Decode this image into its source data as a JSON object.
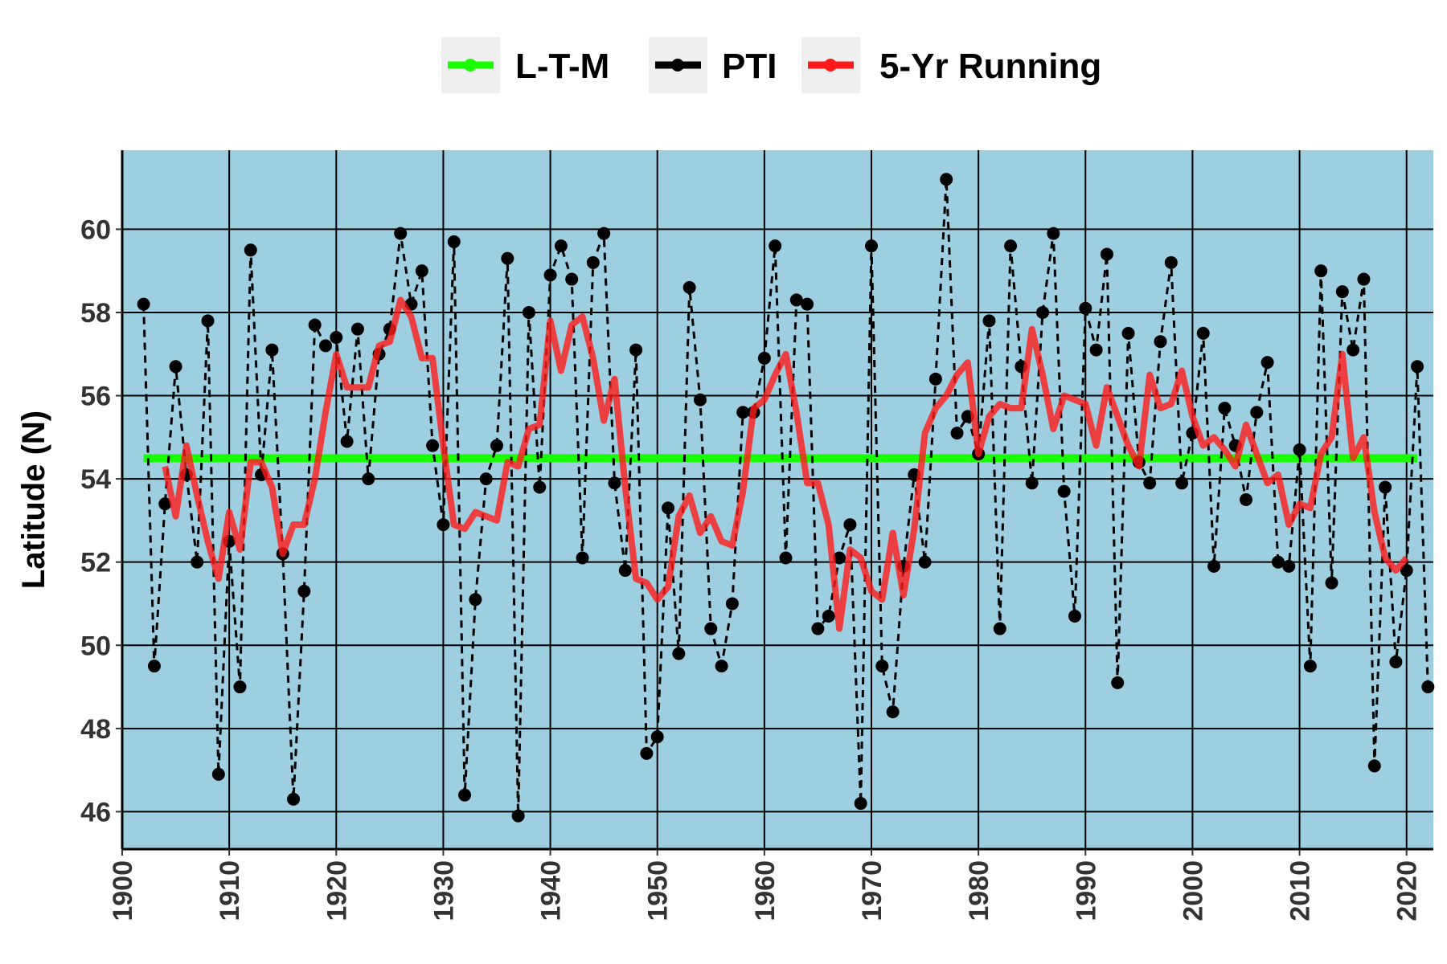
{
  "chart_data": {
    "type": "line",
    "title": "",
    "xlabel": "",
    "ylabel": "Latitude (N)",
    "xlim": [
      1900,
      2022.5
    ],
    "ylim": [
      45.1,
      61.9
    ],
    "x_ticks": [
      1900,
      1910,
      1920,
      1930,
      1940,
      1950,
      1960,
      1970,
      1980,
      1990,
      2000,
      2010,
      2020
    ],
    "y_ticks": [
      46,
      48,
      50,
      52,
      54,
      56,
      58,
      60
    ],
    "grid": true,
    "legend_position": "top",
    "panel_color": "#9ecfe0",
    "legend": [
      {
        "label": "L-T-M",
        "color": "#1aff00"
      },
      {
        "label": "PTI",
        "color": "#000000"
      },
      {
        "label": "5-Yr Running",
        "color": "#ff1a1a"
      }
    ],
    "series": [
      {
        "name": "L-T-M",
        "color": "#1aff00",
        "x": [
          1902,
          2021
        ],
        "y": [
          54.5,
          54.5
        ]
      },
      {
        "name": "PTI",
        "color": "#000000",
        "x": [
          1902,
          1903,
          1904,
          1905,
          1906,
          1907,
          1908,
          1909,
          1910,
          1911,
          1912,
          1913,
          1914,
          1915,
          1916,
          1917,
          1918,
          1919,
          1920,
          1921,
          1922,
          1923,
          1924,
          1925,
          1926,
          1927,
          1928,
          1929,
          1930,
          1931,
          1932,
          1933,
          1934,
          1935,
          1936,
          1937,
          1938,
          1939,
          1940,
          1941,
          1942,
          1943,
          1944,
          1945,
          1946,
          1947,
          1948,
          1949,
          1950,
          1951,
          1952,
          1953,
          1954,
          1955,
          1956,
          1957,
          1958,
          1959,
          1960,
          1961,
          1962,
          1963,
          1964,
          1965,
          1966,
          1967,
          1968,
          1969,
          1970,
          1971,
          1972,
          1973,
          1974,
          1975,
          1976,
          1977,
          1978,
          1979,
          1980,
          1981,
          1982,
          1983,
          1984,
          1985,
          1986,
          1987,
          1988,
          1989,
          1990,
          1991,
          1992,
          1993,
          1994,
          1995,
          1996,
          1997,
          1998,
          1999,
          2000,
          2001,
          2002,
          2003,
          2004,
          2005,
          2006,
          2007,
          2008,
          2009,
          2010,
          2011,
          2012,
          2013,
          2014,
          2015,
          2016,
          2017,
          2018,
          2019,
          2020,
          2021,
          2022
        ],
        "y": [
          58.2,
          49.5,
          53.4,
          56.7,
          54.1,
          52.0,
          57.8,
          46.9,
          52.5,
          49.0,
          59.5,
          54.1,
          57.1,
          52.2,
          46.3,
          51.3,
          57.7,
          57.2,
          57.4,
          54.9,
          57.6,
          54.0,
          57.0,
          57.6,
          59.9,
          58.2,
          59.0,
          54.8,
          52.9,
          59.7,
          46.4,
          51.1,
          54.0,
          54.8,
          59.3,
          45.9,
          58.0,
          53.8,
          58.9,
          59.6,
          58.8,
          52.1,
          59.2,
          59.9,
          53.9,
          51.8,
          57.1,
          47.4,
          47.8,
          53.3,
          49.8,
          58.6,
          55.9,
          50.4,
          49.5,
          51.0,
          55.6,
          55.6,
          56.9,
          59.6,
          52.1,
          58.3,
          58.2,
          50.4,
          50.7,
          52.1,
          52.9,
          46.2,
          59.6,
          49.5,
          48.4,
          51.9,
          54.1,
          52.0,
          56.4,
          61.2,
          55.1,
          55.5,
          54.6,
          57.8,
          50.4,
          59.6,
          56.7,
          53.9,
          58.0,
          59.9,
          53.7,
          50.7,
          58.1,
          57.1,
          59.4,
          49.1,
          57.5,
          54.4,
          53.9,
          57.3,
          59.2,
          53.9,
          55.1,
          57.5,
          51.9,
          55.7,
          54.8,
          53.5,
          55.6,
          56.8,
          52.0,
          51.9,
          54.7,
          49.5,
          59.0,
          51.5,
          58.5,
          57.1,
          58.8,
          47.1,
          53.8,
          49.6,
          51.8,
          56.7,
          49.0
        ]
      },
      {
        "name": "5-Yr Running",
        "color": "#ff1a1a",
        "x": [
          1904,
          1905,
          1906,
          1907,
          1908,
          1909,
          1910,
          1911,
          1912,
          1913,
          1914,
          1915,
          1916,
          1917,
          1918,
          1919,
          1920,
          1921,
          1922,
          1923,
          1924,
          1925,
          1926,
          1927,
          1928,
          1929,
          1930,
          1931,
          1932,
          1933,
          1934,
          1935,
          1936,
          1937,
          1938,
          1939,
          1940,
          1941,
          1942,
          1943,
          1944,
          1945,
          1946,
          1947,
          1948,
          1949,
          1950,
          1951,
          1952,
          1953,
          1954,
          1955,
          1956,
          1957,
          1958,
          1959,
          1960,
          1961,
          1962,
          1963,
          1964,
          1965,
          1966,
          1967,
          1968,
          1969,
          1970,
          1971,
          1972,
          1973,
          1974,
          1975,
          1976,
          1977,
          1978,
          1979,
          1980,
          1981,
          1982,
          1983,
          1984,
          1985,
          1986,
          1987,
          1988,
          1989,
          1990,
          1991,
          1992,
          1993,
          1994,
          1995,
          1996,
          1997,
          1998,
          1999,
          2000,
          2001,
          2002,
          2003,
          2004,
          2005,
          2006,
          2007,
          2008,
          2009,
          2010,
          2011,
          2012,
          2013,
          2014,
          2015,
          2016,
          2017,
          2018,
          2019,
          2020
        ],
        "y": [
          54.3,
          53.1,
          54.8,
          53.6,
          52.5,
          51.6,
          53.2,
          52.3,
          54.4,
          54.4,
          53.8,
          52.2,
          52.9,
          52.9,
          54.0,
          55.6,
          57.0,
          56.2,
          56.2,
          56.2,
          57.2,
          57.3,
          58.3,
          57.9,
          56.9,
          56.9,
          54.8,
          52.9,
          52.8,
          53.2,
          53.1,
          53.0,
          54.4,
          54.3,
          55.2,
          55.3,
          57.8,
          56.6,
          57.7,
          57.9,
          56.9,
          55.4,
          56.4,
          53.8,
          51.6,
          51.5,
          51.1,
          51.4,
          53.1,
          53.6,
          52.7,
          53.1,
          52.5,
          52.4,
          53.7,
          55.7,
          55.9,
          56.5,
          57.0,
          55.6,
          53.9,
          53.9,
          52.9,
          50.4,
          52.3,
          52.1,
          51.3,
          51.1,
          52.7,
          51.2,
          52.8,
          55.1,
          55.7,
          56.0,
          56.5,
          56.8,
          54.6,
          55.5,
          55.8,
          55.7,
          55.7,
          57.6,
          56.5,
          55.2,
          56.0,
          55.9,
          55.8,
          54.8,
          56.2,
          55.5,
          54.8,
          54.3,
          56.5,
          55.7,
          55.8,
          56.6,
          55.5,
          54.8,
          55.0,
          54.7,
          54.3,
          55.3,
          54.6,
          53.9,
          54.1,
          52.9,
          53.4,
          53.3,
          54.6,
          55.0,
          57.0,
          54.5,
          55.0,
          53.2,
          52.1,
          51.8,
          52.1
        ]
      }
    ]
  }
}
